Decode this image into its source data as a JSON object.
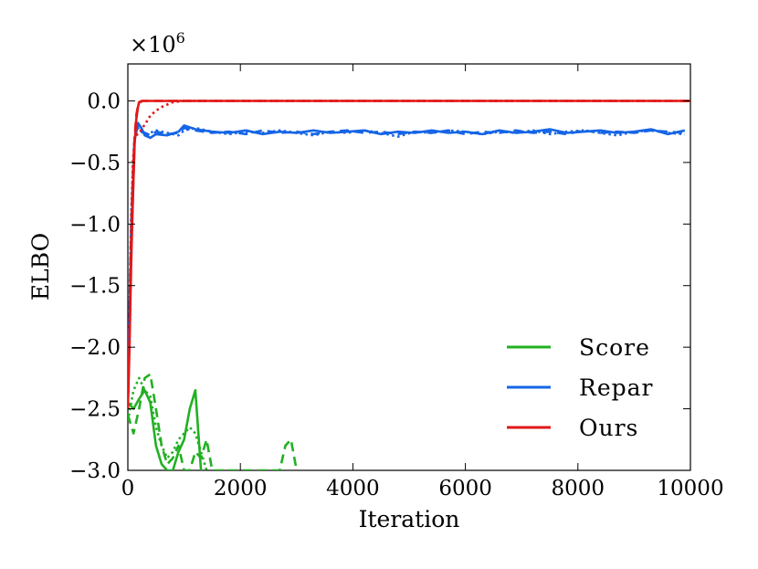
{
  "chart_data": {
    "type": "line",
    "xlabel": "Iteration",
    "ylabel": "ELBO",
    "multiplier": "×10",
    "multiplier_exp": "6",
    "xlim": [
      0,
      10000
    ],
    "ylim": [
      -3.0,
      0.3
    ],
    "xticks": [
      0,
      2000,
      4000,
      6000,
      8000,
      10000
    ],
    "xtick_labels": [
      "0",
      "2000",
      "4000",
      "6000",
      "8000",
      "10000"
    ],
    "yticks": [
      0.0,
      -0.5,
      -1.0,
      -1.5,
      -2.0,
      -2.5,
      -3.0
    ],
    "ytick_labels": [
      "0.0",
      "−0.5",
      "−1.0",
      "−1.5",
      "−2.0",
      "−2.5",
      "−3.0"
    ],
    "grid": false,
    "legend_position": "lower-right",
    "legend": [
      "Score",
      "Repar",
      "Ours"
    ],
    "colors": {
      "Score": "#22b022",
      "Repar": "#1565e6",
      "Ours": "#e01818"
    },
    "series": [
      {
        "name": "Score",
        "style": "solid",
        "x": [
          0,
          100,
          200,
          300,
          400,
          500,
          600,
          700,
          800,
          900,
          1000,
          1100,
          1200,
          1300
        ],
        "y": [
          -2.45,
          -2.5,
          -2.42,
          -2.35,
          -2.45,
          -2.8,
          -2.95,
          -3.0,
          -3.0,
          -2.85,
          -2.75,
          -2.5,
          -2.35,
          -3.0
        ]
      },
      {
        "name": "Score",
        "style": "dashed",
        "x": [
          0,
          100,
          200,
          300,
          400,
          500,
          600,
          700,
          800,
          900,
          1000,
          1100,
          1200,
          1300,
          1400,
          1500,
          2700,
          2800,
          2900,
          3000
        ],
        "y": [
          -2.55,
          -2.7,
          -2.5,
          -2.25,
          -2.22,
          -2.5,
          -2.8,
          -2.95,
          -2.9,
          -2.8,
          -3.0,
          -3.0,
          -2.85,
          -2.9,
          -2.75,
          -3.0,
          -3.0,
          -2.8,
          -2.75,
          -3.0
        ]
      },
      {
        "name": "Score",
        "style": "dotted",
        "x": [
          0,
          100,
          200,
          300,
          400,
          500,
          600,
          700,
          800,
          900,
          1000,
          1100,
          1200,
          1300,
          1400
        ],
        "y": [
          -2.6,
          -2.35,
          -2.25,
          -2.35,
          -2.4,
          -2.65,
          -2.8,
          -2.9,
          -2.85,
          -2.75,
          -2.7,
          -2.65,
          -2.7,
          -2.85,
          -3.0
        ]
      },
      {
        "name": "Repar",
        "style": "solid",
        "x": [
          0,
          60,
          120,
          180,
          240,
          300,
          400,
          500,
          700,
          900,
          1000,
          1200,
          1500,
          1800,
          2100,
          2400,
          2700,
          3000,
          3300,
          3600,
          3900,
          4200,
          4500,
          4800,
          5100,
          5400,
          5700,
          6000,
          6300,
          6600,
          6900,
          7200,
          7500,
          7800,
          8100,
          8400,
          8700,
          9000,
          9300,
          9600,
          9900
        ],
        "y": [
          -2.4,
          -1.2,
          -0.32,
          -0.18,
          -0.22,
          -0.28,
          -0.3,
          -0.27,
          -0.28,
          -0.25,
          -0.2,
          -0.23,
          -0.25,
          -0.26,
          -0.24,
          -0.27,
          -0.25,
          -0.26,
          -0.24,
          -0.26,
          -0.25,
          -0.24,
          -0.27,
          -0.25,
          -0.26,
          -0.24,
          -0.26,
          -0.25,
          -0.27,
          -0.24,
          -0.26,
          -0.25,
          -0.23,
          -0.26,
          -0.25,
          -0.24,
          -0.26,
          -0.25,
          -0.23,
          -0.27,
          -0.24
        ]
      },
      {
        "name": "Repar",
        "style": "dashed",
        "x": [
          0,
          60,
          120,
          180,
          240,
          300,
          400,
          500,
          700,
          900,
          1000,
          1200,
          1500,
          1800,
          2100,
          2400,
          2700,
          3000,
          3300,
          3600,
          3900,
          4200,
          4500,
          4800,
          5100,
          5400,
          5700,
          6000,
          6300,
          6600,
          6900,
          7200,
          7500,
          7800,
          8100,
          8400,
          8700,
          9000,
          9300,
          9600,
          9900
        ],
        "y": [
          -2.4,
          -1.0,
          -0.3,
          -0.2,
          -0.24,
          -0.26,
          -0.28,
          -0.25,
          -0.27,
          -0.26,
          -0.22,
          -0.24,
          -0.26,
          -0.25,
          -0.27,
          -0.24,
          -0.26,
          -0.25,
          -0.27,
          -0.25,
          -0.24,
          -0.26,
          -0.25,
          -0.27,
          -0.25,
          -0.26,
          -0.24,
          -0.27,
          -0.25,
          -0.26,
          -0.24,
          -0.26,
          -0.25,
          -0.27,
          -0.24,
          -0.26,
          -0.25,
          -0.26,
          -0.24,
          -0.25,
          -0.26
        ]
      },
      {
        "name": "Repar",
        "style": "dotted",
        "x": [
          0,
          60,
          120,
          180,
          240,
          300,
          400,
          500,
          700,
          900,
          1000,
          1200,
          1500,
          1800,
          2100,
          2400,
          2700,
          3000,
          3300,
          3600,
          3900,
          4200,
          4500,
          4800,
          5100,
          5400,
          5700,
          6000,
          6300,
          6600,
          6900,
          7200,
          7500,
          7800,
          8100,
          8400,
          8700,
          9000,
          9300,
          9600,
          9900
        ],
        "y": [
          -2.4,
          -0.9,
          -0.28,
          -0.22,
          -0.25,
          -0.27,
          -0.26,
          -0.24,
          -0.26,
          -0.28,
          -0.24,
          -0.22,
          -0.25,
          -0.27,
          -0.25,
          -0.26,
          -0.24,
          -0.26,
          -0.28,
          -0.25,
          -0.26,
          -0.24,
          -0.26,
          -0.29,
          -0.25,
          -0.26,
          -0.24,
          -0.25,
          -0.27,
          -0.25,
          -0.26,
          -0.24,
          -0.27,
          -0.25,
          -0.24,
          -0.26,
          -0.28,
          -0.25,
          -0.24,
          -0.26,
          -0.27
        ]
      },
      {
        "name": "Ours",
        "style": "solid",
        "x": [
          0,
          30,
          60,
          90,
          120,
          150,
          180,
          200,
          250,
          300,
          400,
          1000,
          10000
        ],
        "y": [
          -2.5,
          -2.0,
          -1.3,
          -0.8,
          -0.35,
          -0.15,
          -0.05,
          -0.01,
          0.0,
          0.0,
          0.0,
          0.0,
          0.0
        ]
      },
      {
        "name": "Ours",
        "style": "dashed",
        "x": [
          0,
          30,
          60,
          90,
          120,
          150,
          180,
          220,
          260,
          300,
          400,
          1000,
          10000
        ],
        "y": [
          -2.5,
          -1.9,
          -1.1,
          -0.6,
          -0.3,
          -0.12,
          -0.04,
          -0.01,
          0.0,
          0.0,
          0.0,
          0.0,
          0.0
        ]
      },
      {
        "name": "Ours",
        "style": "dotted",
        "x": [
          0,
          30,
          60,
          90,
          120,
          150,
          200,
          260,
          320,
          400,
          500,
          600,
          700,
          800,
          1000,
          10000
        ],
        "y": [
          -2.5,
          -1.8,
          -1.0,
          -0.5,
          -0.3,
          -0.28,
          -0.26,
          -0.22,
          -0.18,
          -0.12,
          -0.08,
          -0.05,
          -0.03,
          -0.01,
          0.0,
          0.0
        ]
      }
    ]
  }
}
